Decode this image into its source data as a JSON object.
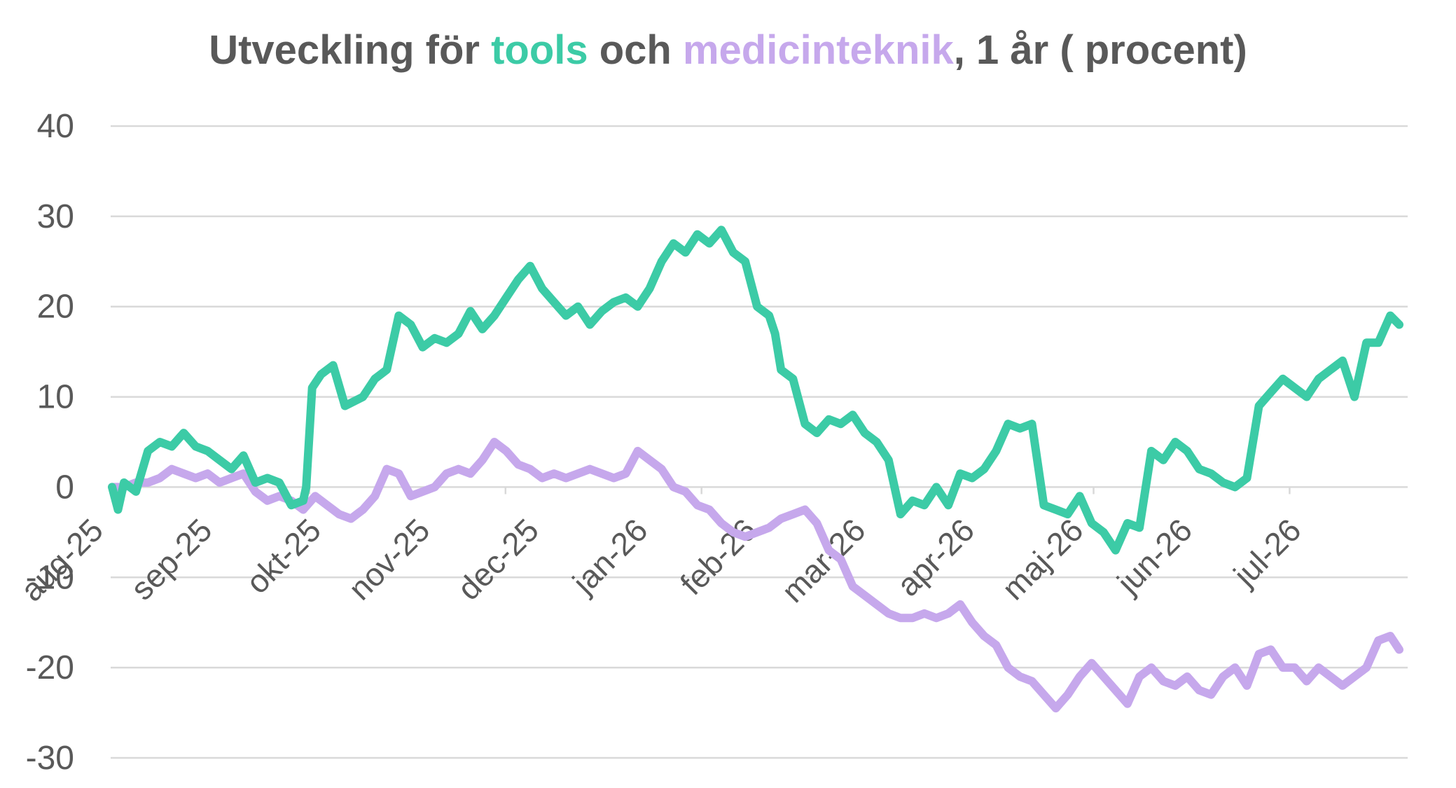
{
  "chart_data": {
    "type": "line",
    "title": {
      "prefix": "Utveckling för ",
      "series1": "tools",
      "middle": " och ",
      "series2": "medicinteknik",
      "suffix": ", 1 år ( procent)"
    },
    "xlabel": "",
    "ylabel": "",
    "ylim": [
      -30,
      40
    ],
    "yticks": [
      "40",
      "30",
      "20",
      "10",
      "0",
      "-10",
      "-20",
      "-30"
    ],
    "x_tick_labels": [
      "aug-25",
      "sep-25",
      "okt-25",
      "nov-25",
      "dec-25",
      "jan-26",
      "feb-26",
      "mar-26",
      "apr-26",
      "maj-26",
      "jun-26",
      "jul-26"
    ],
    "grid": true,
    "legend": "none (series named in title)",
    "series": [
      {
        "name": "tools",
        "color": "#3CCBA6",
        "points": [
          [
            0,
            0
          ],
          [
            0.1,
            -2.5
          ],
          [
            0.2,
            0.5
          ],
          [
            0.4,
            -0.5
          ],
          [
            0.6,
            4
          ],
          [
            0.8,
            5
          ],
          [
            1.0,
            4.5
          ],
          [
            1.2,
            6
          ],
          [
            1.4,
            4.5
          ],
          [
            1.6,
            4
          ],
          [
            1.8,
            3
          ],
          [
            2.0,
            2
          ],
          [
            2.2,
            3.5
          ],
          [
            2.4,
            0.5
          ],
          [
            2.6,
            1
          ],
          [
            2.8,
            0.5
          ],
          [
            3.0,
            -2
          ],
          [
            3.2,
            -1.5
          ],
          [
            3.25,
            0
          ],
          [
            3.35,
            11
          ],
          [
            3.5,
            12.5
          ],
          [
            3.7,
            13.5
          ],
          [
            3.9,
            9
          ],
          [
            4.2,
            10
          ],
          [
            4.4,
            12
          ],
          [
            4.6,
            13
          ],
          [
            4.8,
            19
          ],
          [
            5.0,
            18
          ],
          [
            5.2,
            15.5
          ],
          [
            5.4,
            16.5
          ],
          [
            5.6,
            16
          ],
          [
            5.8,
            17
          ],
          [
            6.0,
            19.5
          ],
          [
            6.2,
            17.5
          ],
          [
            6.4,
            19
          ],
          [
            6.6,
            21
          ],
          [
            6.8,
            23
          ],
          [
            7.0,
            24.5
          ],
          [
            7.2,
            22
          ],
          [
            7.4,
            20.5
          ],
          [
            7.6,
            19
          ],
          [
            7.8,
            20
          ],
          [
            8.0,
            18
          ],
          [
            8.2,
            19.5
          ],
          [
            8.4,
            20.5
          ],
          [
            8.6,
            21
          ],
          [
            8.8,
            20
          ],
          [
            9.0,
            22
          ],
          [
            9.2,
            25
          ],
          [
            9.4,
            27
          ],
          [
            9.6,
            26
          ],
          [
            9.8,
            28
          ],
          [
            10.0,
            27
          ],
          [
            10.2,
            28.5
          ],
          [
            10.4,
            26
          ],
          [
            10.6,
            25
          ],
          [
            10.8,
            20
          ],
          [
            11.0,
            19
          ],
          [
            11.1,
            17
          ],
          [
            11.2,
            13
          ],
          [
            11.4,
            12
          ],
          [
            11.6,
            7
          ],
          [
            11.8,
            6
          ],
          [
            12.0,
            7.5
          ],
          [
            12.2,
            7
          ],
          [
            12.4,
            8
          ],
          [
            12.6,
            6
          ],
          [
            12.8,
            5
          ],
          [
            13.0,
            3
          ],
          [
            13.2,
            -3
          ],
          [
            13.4,
            -1.5
          ],
          [
            13.6,
            -2
          ],
          [
            13.8,
            0
          ],
          [
            14.0,
            -2
          ],
          [
            14.2,
            1.5
          ],
          [
            14.4,
            1
          ],
          [
            14.6,
            2
          ],
          [
            14.8,
            4
          ],
          [
            15.0,
            7
          ],
          [
            15.2,
            6.5
          ],
          [
            15.4,
            7
          ],
          [
            15.6,
            -2
          ],
          [
            15.8,
            -2.5
          ],
          [
            16.0,
            -3
          ],
          [
            16.2,
            -1
          ],
          [
            16.4,
            -4
          ],
          [
            16.6,
            -5
          ],
          [
            16.8,
            -7
          ],
          [
            17.0,
            -4
          ],
          [
            17.2,
            -4.5
          ],
          [
            17.4,
            4
          ],
          [
            17.6,
            3
          ],
          [
            17.8,
            5
          ],
          [
            18.0,
            4
          ],
          [
            18.2,
            2
          ],
          [
            18.4,
            1.5
          ],
          [
            18.6,
            0.5
          ],
          [
            18.8,
            0
          ],
          [
            19.0,
            1
          ],
          [
            19.2,
            9
          ],
          [
            19.4,
            10.5
          ],
          [
            19.6,
            12
          ],
          [
            19.8,
            11
          ],
          [
            20.0,
            10
          ],
          [
            20.2,
            12
          ],
          [
            20.4,
            13
          ],
          [
            20.6,
            14
          ],
          [
            20.8,
            10
          ],
          [
            21.0,
            16
          ],
          [
            21.2,
            16
          ],
          [
            21.4,
            19
          ],
          [
            21.55,
            18
          ]
        ]
      },
      {
        "name": "medicinteknik",
        "color": "#C6A8EC",
        "points": [
          [
            0,
            0
          ],
          [
            0.2,
            0
          ],
          [
            0.4,
            0.5
          ],
          [
            0.6,
            0.5
          ],
          [
            0.8,
            1
          ],
          [
            1.0,
            2
          ],
          [
            1.2,
            1.5
          ],
          [
            1.4,
            1
          ],
          [
            1.6,
            1.5
          ],
          [
            1.8,
            0.5
          ],
          [
            2.0,
            1
          ],
          [
            2.2,
            1.5
          ],
          [
            2.4,
            -0.5
          ],
          [
            2.6,
            -1.5
          ],
          [
            2.8,
            -1
          ],
          [
            3.0,
            -1.5
          ],
          [
            3.2,
            -2.5
          ],
          [
            3.4,
            -1
          ],
          [
            3.6,
            -2
          ],
          [
            3.8,
            -3
          ],
          [
            4.0,
            -3.5
          ],
          [
            4.2,
            -2.5
          ],
          [
            4.4,
            -1
          ],
          [
            4.6,
            2
          ],
          [
            4.8,
            1.5
          ],
          [
            5.0,
            -1
          ],
          [
            5.2,
            -0.5
          ],
          [
            5.4,
            0
          ],
          [
            5.6,
            1.5
          ],
          [
            5.8,
            2
          ],
          [
            6.0,
            1.5
          ],
          [
            6.2,
            3
          ],
          [
            6.4,
            5
          ],
          [
            6.6,
            4
          ],
          [
            6.8,
            2.5
          ],
          [
            7.0,
            2
          ],
          [
            7.2,
            1
          ],
          [
            7.4,
            1.5
          ],
          [
            7.6,
            1
          ],
          [
            7.8,
            1.5
          ],
          [
            8.0,
            2
          ],
          [
            8.2,
            1.5
          ],
          [
            8.4,
            1
          ],
          [
            8.6,
            1.5
          ],
          [
            8.8,
            4
          ],
          [
            9.0,
            3
          ],
          [
            9.2,
            2
          ],
          [
            9.4,
            0
          ],
          [
            9.6,
            -0.5
          ],
          [
            9.8,
            -2
          ],
          [
            10.0,
            -2.5
          ],
          [
            10.2,
            -4
          ],
          [
            10.4,
            -5
          ],
          [
            10.6,
            -5.5
          ],
          [
            10.8,
            -5
          ],
          [
            11.0,
            -4.5
          ],
          [
            11.2,
            -3.5
          ],
          [
            11.4,
            -3
          ],
          [
            11.6,
            -2.5
          ],
          [
            11.8,
            -4
          ],
          [
            12.0,
            -7
          ],
          [
            12.2,
            -8
          ],
          [
            12.4,
            -11
          ],
          [
            12.6,
            -12
          ],
          [
            12.8,
            -13
          ],
          [
            13.0,
            -14
          ],
          [
            13.2,
            -14.5
          ],
          [
            13.4,
            -14.5
          ],
          [
            13.6,
            -14
          ],
          [
            13.8,
            -14.5
          ],
          [
            14.0,
            -14
          ],
          [
            14.2,
            -13
          ],
          [
            14.4,
            -15
          ],
          [
            14.6,
            -16.5
          ],
          [
            14.8,
            -17.5
          ],
          [
            15.0,
            -20
          ],
          [
            15.2,
            -21
          ],
          [
            15.4,
            -21.5
          ],
          [
            15.6,
            -23
          ],
          [
            15.8,
            -24.5
          ],
          [
            16.0,
            -23
          ],
          [
            16.2,
            -21
          ],
          [
            16.4,
            -19.5
          ],
          [
            16.6,
            -21
          ],
          [
            16.8,
            -22.5
          ],
          [
            17.0,
            -24
          ],
          [
            17.2,
            -21
          ],
          [
            17.4,
            -20
          ],
          [
            17.6,
            -21.5
          ],
          [
            17.8,
            -22
          ],
          [
            18.0,
            -21
          ],
          [
            18.2,
            -22.5
          ],
          [
            18.4,
            -23
          ],
          [
            18.6,
            -21
          ],
          [
            18.8,
            -20
          ],
          [
            19.0,
            -22
          ],
          [
            19.2,
            -18.5
          ],
          [
            19.4,
            -18
          ],
          [
            19.6,
            -20
          ],
          [
            19.8,
            -20
          ],
          [
            20.0,
            -21.5
          ],
          [
            20.2,
            -20
          ],
          [
            20.4,
            -21
          ],
          [
            20.6,
            -22
          ],
          [
            20.8,
            -21
          ],
          [
            21.0,
            -20
          ],
          [
            21.2,
            -17
          ],
          [
            21.4,
            -16.5
          ],
          [
            21.55,
            -18
          ]
        ]
      }
    ]
  }
}
